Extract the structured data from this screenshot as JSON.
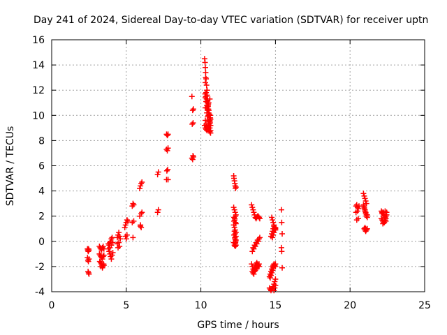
{
  "chart_data": {
    "type": "scatter",
    "title": "Day 241 of 2024, Sidereal Day-to-day VTEC variation (SDTVAR) for receiver uptn",
    "xlabel": "GPS time / hours",
    "ylabel": "SDTVAR / TECUs",
    "xlim": [
      0,
      25
    ],
    "ylim": [
      -4,
      16
    ],
    "xticks": [
      0,
      5,
      10,
      15,
      20,
      25
    ],
    "yticks": [
      -4,
      -2,
      0,
      2,
      4,
      6,
      8,
      10,
      12,
      14,
      16
    ],
    "grid": true,
    "marker": "+",
    "color": "#ff0000",
    "series": [
      {
        "name": "SDTVAR",
        "x": [
          2.4,
          2.42,
          2.45,
          2.47,
          2.5,
          2.4,
          2.43,
          2.46,
          2.5,
          2.44,
          2.47,
          2.5,
          3.2,
          3.25,
          3.3,
          3.35,
          3.4,
          3.45,
          3.5,
          3.2,
          3.25,
          3.3,
          3.35,
          3.4,
          3.45,
          3.5,
          3.22,
          3.28,
          3.33,
          3.38,
          3.43,
          3.48,
          3.3,
          3.4,
          3.5,
          3.8,
          3.85,
          3.9,
          3.95,
          4.0,
          4.05,
          3.8,
          3.85,
          3.9,
          3.95,
          4.0,
          4.05,
          4.1,
          3.9,
          4.0,
          4.1,
          4.4,
          4.45,
          4.5,
          4.55,
          4.4,
          4.5,
          4.6,
          4.45,
          4.55,
          4.9,
          4.95,
          5.0,
          5.05,
          5.1,
          4.95,
          5.05,
          5.0,
          5.4,
          5.45,
          5.5,
          5.4,
          5.5,
          5.45,
          5.9,
          5.95,
          6.0,
          6.05,
          5.9,
          6.0,
          6.05,
          5.95,
          6.0,
          5.95,
          7.1,
          7.15,
          7.1,
          7.15,
          7.7,
          7.75,
          7.8,
          7.7,
          7.75,
          7.8,
          7.72,
          7.78,
          7.7,
          7.8,
          9.4,
          9.45,
          9.5,
          9.42,
          9.48,
          9.4,
          9.5,
          9.45,
          9.47,
          10.25,
          10.28,
          10.3,
          10.32,
          10.35,
          10.38,
          10.4,
          10.42,
          10.45,
          10.48,
          10.5,
          10.52,
          10.55,
          10.58,
          10.6,
          10.62,
          10.65,
          10.3,
          10.35,
          10.4,
          10.45,
          10.5,
          10.55,
          10.6,
          10.25,
          10.3,
          10.35,
          10.4,
          10.45,
          10.5,
          10.55,
          10.6,
          10.65,
          10.3,
          10.4,
          10.5,
          10.6,
          10.28,
          10.33,
          10.38,
          10.43,
          10.48,
          10.53,
          10.58,
          10.63,
          10.3,
          10.35,
          10.4,
          10.45,
          10.5,
          10.55,
          10.6,
          10.65,
          10.32,
          10.42,
          10.52,
          10.62,
          10.3,
          10.35,
          10.4,
          10.45,
          10.5,
          10.55,
          10.6,
          10.65,
          12.2,
          12.22,
          12.25,
          12.28,
          12.3,
          12.32,
          12.35,
          12.2,
          12.25,
          12.3,
          12.35,
          12.22,
          12.27,
          12.32,
          12.2,
          12.25,
          12.3,
          12.35,
          12.22,
          12.28,
          12.33,
          12.2,
          12.25,
          12.3,
          12.35,
          12.22,
          12.27,
          12.32,
          12.25,
          12.3,
          12.35,
          12.28,
          12.33,
          12.3,
          12.35,
          12.32,
          12.3,
          12.35,
          13.4,
          13.45,
          13.5,
          13.55,
          13.6,
          13.65,
          13.7,
          13.75,
          13.8,
          13.85,
          13.9,
          13.95,
          13.4,
          13.45,
          13.5,
          13.55,
          13.6,
          13.65,
          13.7,
          13.75,
          13.8,
          13.85,
          13.9,
          13.45,
          13.5,
          13.55,
          13.6,
          13.65,
          13.7,
          13.75,
          13.8,
          13.85,
          13.9,
          13.45,
          13.55,
          13.65,
          13.75,
          13.85,
          13.95,
          13.5,
          13.6,
          13.7,
          13.8,
          13.9,
          14.6,
          14.65,
          14.7,
          14.75,
          14.8,
          14.85,
          14.9,
          14.95,
          15.0,
          14.6,
          14.65,
          14.7,
          14.75,
          14.8,
          14.85,
          14.9,
          14.95,
          15.0,
          14.65,
          14.7,
          14.75,
          14.8,
          14.85,
          14.9,
          14.95,
          15.0,
          14.7,
          14.75,
          14.8,
          14.85,
          14.9,
          14.95,
          15.0,
          14.75,
          14.8,
          14.85,
          14.9,
          14.95,
          15.0,
          14.8,
          14.85,
          14.9,
          14.95,
          15.0,
          14.9,
          14.95,
          15.0,
          15.4,
          15.42,
          15.45,
          15.4,
          15.45,
          15.42,
          20.4,
          20.45,
          20.5,
          20.55,
          20.6,
          20.4,
          20.5,
          20.45,
          20.55,
          20.9,
          20.95,
          21.0,
          21.05,
          21.1,
          20.9,
          20.95,
          21.0,
          21.05,
          21.1,
          21.15,
          20.9,
          20.95,
          21.0,
          21.05,
          21.1,
          21.15,
          21.0,
          21.05,
          21.1,
          20.95,
          21.0,
          21.05,
          21.1,
          21.15,
          22.1,
          22.15,
          22.2,
          22.25,
          22.3,
          22.35,
          22.4,
          22.45,
          22.1,
          22.15,
          22.2,
          22.25,
          22.3,
          22.35,
          22.4,
          22.15,
          22.25,
          22.35,
          22.45,
          22.2,
          22.3,
          22.4
        ],
        "y": [
          -0.6,
          -0.7,
          -0.8,
          -0.6,
          -0.7,
          -1.3,
          -1.5,
          -1.6,
          -1.4,
          -2.4,
          -2.5,
          -2.6,
          -0.4,
          -0.5,
          -0.6,
          -0.7,
          -0.5,
          -0.4,
          -0.6,
          -1.0,
          -1.1,
          -1.2,
          -1.3,
          -1.4,
          -1.2,
          -1.1,
          -1.6,
          -1.7,
          -1.8,
          -1.9,
          -2.0,
          -1.8,
          -2.0,
          -2.1,
          -1.9,
          -0.2,
          -0.3,
          -0.1,
          0.0,
          0.2,
          0.3,
          -0.6,
          -0.8,
          -1.0,
          -1.2,
          -1.4,
          -1.1,
          -0.9,
          -0.5,
          -0.3,
          -0.1,
          0.3,
          0.5,
          0.7,
          0.4,
          -0.2,
          -0.1,
          0.2,
          -0.5,
          -0.4,
          1.1,
          1.3,
          1.5,
          1.7,
          1.6,
          0.4,
          0.5,
          0.2,
          2.8,
          3.0,
          2.9,
          1.5,
          1.6,
          0.3,
          4.2,
          4.4,
          4.6,
          4.7,
          2.0,
          2.2,
          2.3,
          1.2,
          1.1,
          1.3,
          5.3,
          5.5,
          2.3,
          2.5,
          8.5,
          8.4,
          8.5,
          7.3,
          7.2,
          7.4,
          5.6,
          5.7,
          4.9,
          4.9,
          11.5,
          10.4,
          10.5,
          9.3,
          9.4,
          6.6,
          6.7,
          6.5,
          6.8,
          14.5,
          14.2,
          13.8,
          13.4,
          12.9,
          12.4,
          12.0,
          11.6,
          11.2,
          10.8,
          10.5,
          10.2,
          10.0,
          9.8,
          9.6,
          9.4,
          9.2,
          11.4,
          11.1,
          10.8,
          10.4,
          10.0,
          9.7,
          9.4,
          9.2,
          9.0,
          8.9,
          8.8,
          9.0,
          9.1,
          9.3,
          9.5,
          9.7,
          10.6,
          10.2,
          10.9,
          11.3,
          11.7,
          11.5,
          11.3,
          11.0,
          10.7,
          10.4,
          10.1,
          9.8,
          9.6,
          9.3,
          9.1,
          9.0,
          8.9,
          8.8,
          8.7,
          8.6,
          13.0,
          12.0,
          11.0,
          10.0,
          12.6,
          11.8,
          10.6,
          9.9,
          9.5,
          9.2,
          9.0,
          8.8,
          5.2,
          5.0,
          4.8,
          4.6,
          4.4,
          4.2,
          4.3,
          2.7,
          2.5,
          2.3,
          2.1,
          1.9,
          1.7,
          1.5,
          1.3,
          1.1,
          0.9,
          0.7,
          0.5,
          0.3,
          0.1,
          -0.1,
          -0.3,
          -0.4,
          1.4,
          1.6,
          1.8,
          2.0,
          0.8,
          0.6,
          0.4,
          0.2,
          0.0,
          -0.2,
          -0.3,
          -0.1,
          -0.4,
          0.1,
          2.9,
          2.7,
          2.5,
          2.3,
          2.1,
          1.9,
          1.8,
          1.9,
          2.0,
          2.0,
          1.9,
          1.8,
          -1.8,
          -2.0,
          -2.2,
          -2.3,
          -2.1,
          -1.9,
          -1.8,
          -1.7,
          -1.8,
          -1.9,
          -2.0,
          -2.4,
          -2.5,
          -2.6,
          -2.4,
          -2.3,
          -2.2,
          -2.1,
          -2.0,
          -1.9,
          -1.8,
          -0.8,
          -0.6,
          -0.4,
          -0.2,
          0.0,
          0.3,
          -0.5,
          -0.3,
          -0.1,
          0.1,
          0.2,
          -3.7,
          -3.8,
          -3.9,
          -3.8,
          -3.7,
          -3.6,
          -3.4,
          -3.2,
          -3.0,
          -2.8,
          -2.6,
          -2.4,
          -2.2,
          -2.0,
          -1.9,
          -1.8,
          -1.9,
          -2.0,
          -2.9,
          -2.7,
          -2.5,
          -2.3,
          -2.1,
          -2.0,
          -1.9,
          -1.8,
          0.4,
          0.6,
          0.8,
          1.0,
          1.2,
          1.1,
          0.9,
          1.9,
          1.7,
          1.5,
          1.3,
          1.1,
          1.0,
          0.3,
          0.5,
          0.7,
          0.9,
          1.1,
          -3.9,
          -3.7,
          -3.5,
          2.5,
          1.5,
          0.6,
          -0.5,
          -2.1,
          -0.8,
          2.8,
          2.9,
          2.7,
          2.6,
          2.8,
          2.3,
          2.4,
          1.7,
          1.8,
          3.8,
          3.6,
          3.4,
          3.2,
          3.0,
          2.8,
          2.6,
          2.4,
          2.2,
          2.0,
          2.1,
          2.9,
          2.7,
          2.5,
          2.3,
          2.1,
          1.9,
          1.1,
          1.0,
          0.9,
          1.0,
          0.9,
          0.8,
          0.9,
          1.0,
          2.4,
          2.3,
          2.2,
          2.1,
          2.0,
          1.9,
          2.0,
          2.1,
          1.8,
          1.7,
          1.6,
          1.5,
          1.6,
          1.7,
          1.8,
          2.2,
          2.3,
          2.4,
          2.3,
          1.4,
          1.5,
          1.6
        ]
      }
    ]
  }
}
